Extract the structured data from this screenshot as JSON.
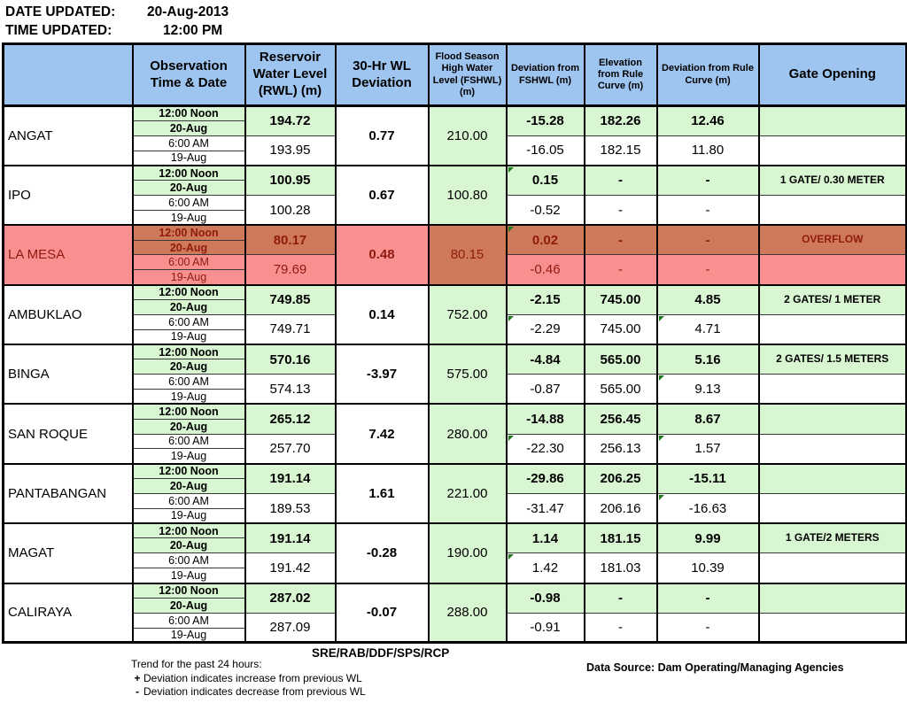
{
  "meta": {
    "date_label": "DATE UPDATED:",
    "date_value": "20-Aug-2013",
    "time_label": "TIME UPDATED:",
    "time_value": "12:00 PM"
  },
  "table": {
    "headers": {
      "dam": "",
      "observation": "Observation Time & Date",
      "rwl": "Reservoir Water Level (RWL) (m)",
      "dev30": "30-Hr WL Deviation",
      "fshwl": "Flood Season High Water Level (FSHWL) (m)",
      "dev_fshwl": "Deviation from FSHWL (m)",
      "elev_rule": "Elevation from Rule Curve (m)",
      "dev_rule": "Deviation from Rule Curve (m)",
      "gate": "Gate Opening"
    },
    "obs_labels": [
      "12:00 Noon",
      "20-Aug",
      "6:00 AM",
      "19-Aug"
    ],
    "rows": [
      {
        "dam": "ANGAT",
        "alert": false,
        "rwl_noon": "194.72",
        "rwl_am": "193.95",
        "dev30": "0.77",
        "fshwl": "210.00",
        "devf_noon": "-15.28",
        "devf_am": "-16.05",
        "elev_noon": "182.26",
        "elev_am": "182.15",
        "devr_noon": "12.46",
        "devr_am": "11.80",
        "gate_noon": "",
        "gate_am": "",
        "tri": []
      },
      {
        "dam": "IPO",
        "alert": false,
        "rwl_noon": "100.95",
        "rwl_am": "100.28",
        "dev30": "0.67",
        "fshwl": "100.80",
        "devf_noon": "0.15",
        "devf_am": "-0.52",
        "elev_noon": "-",
        "elev_am": "-",
        "devr_noon": "-",
        "devr_am": "-",
        "gate_noon": "1 GATE/ 0.30 METER",
        "gate_am": "",
        "tri": [
          "devf_noon"
        ]
      },
      {
        "dam": "LA MESA",
        "alert": true,
        "rwl_noon": "80.17",
        "rwl_am": "79.69",
        "dev30": "0.48",
        "fshwl": "80.15",
        "devf_noon": "0.02",
        "devf_am": "-0.46",
        "elev_noon": "-",
        "elev_am": "-",
        "devr_noon": "-",
        "devr_am": "-",
        "gate_noon": "OVERFLOW",
        "gate_am": "",
        "tri": [
          "devf_noon"
        ]
      },
      {
        "dam": "AMBUKLAO",
        "alert": false,
        "rwl_noon": "749.85",
        "rwl_am": "749.71",
        "dev30": "0.14",
        "fshwl": "752.00",
        "devf_noon": "-2.15",
        "devf_am": "-2.29",
        "elev_noon": "745.00",
        "elev_am": "745.00",
        "devr_noon": "4.85",
        "devr_am": "4.71",
        "gate_noon": "2 GATES/ 1 METER",
        "gate_am": "",
        "tri": [
          "devf_am",
          "devr_am"
        ]
      },
      {
        "dam": "BINGA",
        "alert": false,
        "rwl_noon": "570.16",
        "rwl_am": "574.13",
        "dev30": "-3.97",
        "fshwl": "575.00",
        "devf_noon": "-4.84",
        "devf_am": "-0.87",
        "elev_noon": "565.00",
        "elev_am": "565.00",
        "devr_noon": "5.16",
        "devr_am": "9.13",
        "gate_noon": "2 GATES/ 1.5 METERS",
        "gate_am": "",
        "tri": [
          "devr_am"
        ]
      },
      {
        "dam": "SAN ROQUE",
        "alert": false,
        "rwl_noon": "265.12",
        "rwl_am": "257.70",
        "dev30": "7.42",
        "fshwl": "280.00",
        "devf_noon": "-14.88",
        "devf_am": "-22.30",
        "elev_noon": "256.45",
        "elev_am": "256.13",
        "devr_noon": "8.67",
        "devr_am": "1.57",
        "gate_noon": "",
        "gate_am": "",
        "tri": [
          "devf_am",
          "devr_am"
        ]
      },
      {
        "dam": "PANTABANGAN",
        "alert": false,
        "rwl_noon": "191.14",
        "rwl_am": "189.53",
        "dev30": "1.61",
        "fshwl": "221.00",
        "devf_noon": "-29.86",
        "devf_am": "-31.47",
        "elev_noon": "206.25",
        "elev_am": "206.16",
        "devr_noon": "-15.11",
        "devr_am": "-16.63",
        "gate_noon": "",
        "gate_am": "",
        "tri": [
          "devr_am"
        ]
      },
      {
        "dam": "MAGAT",
        "alert": false,
        "rwl_noon": "191.14",
        "rwl_am": "191.42",
        "dev30": "-0.28",
        "fshwl": "190.00",
        "devf_noon": "1.14",
        "devf_am": "1.42",
        "elev_noon": "181.15",
        "elev_am": "181.03",
        "devr_noon": "9.99",
        "devr_am": "10.39",
        "gate_noon": "1 GATE/2 METERS",
        "gate_am": "",
        "tri": [
          "devf_am"
        ]
      },
      {
        "dam": "CALIRAYA",
        "alert": false,
        "rwl_noon": "287.02",
        "rwl_am": "287.09",
        "dev30": "-0.07",
        "fshwl": "288.00",
        "devf_noon": "-0.98",
        "devf_am": "-0.91",
        "elev_noon": "-",
        "elev_am": "-",
        "devr_noon": "-",
        "devr_am": "-",
        "gate_noon": "",
        "gate_am": "",
        "tri": []
      }
    ]
  },
  "footer": {
    "code": "SRE/RAB/DDF/SPS/RCP",
    "trend_title": "Trend for the past 24 hours:",
    "trend_plus_symbol": "+",
    "trend_plus_text": "Deviation indicates increase from previous WL",
    "trend_minus_symbol": "-",
    "trend_minus_text": "Deviation indicates decrease from previous WL",
    "data_source": "Data Source: Dam Operating/Managing  Agencies"
  },
  "colors": {
    "header_blue": "#9ec5f0",
    "pale_green": "#d9f6d3",
    "alert_pink": "#fa8f8f",
    "alert_orange": "#ce7a5a",
    "alert_text": "#8f1a10"
  }
}
